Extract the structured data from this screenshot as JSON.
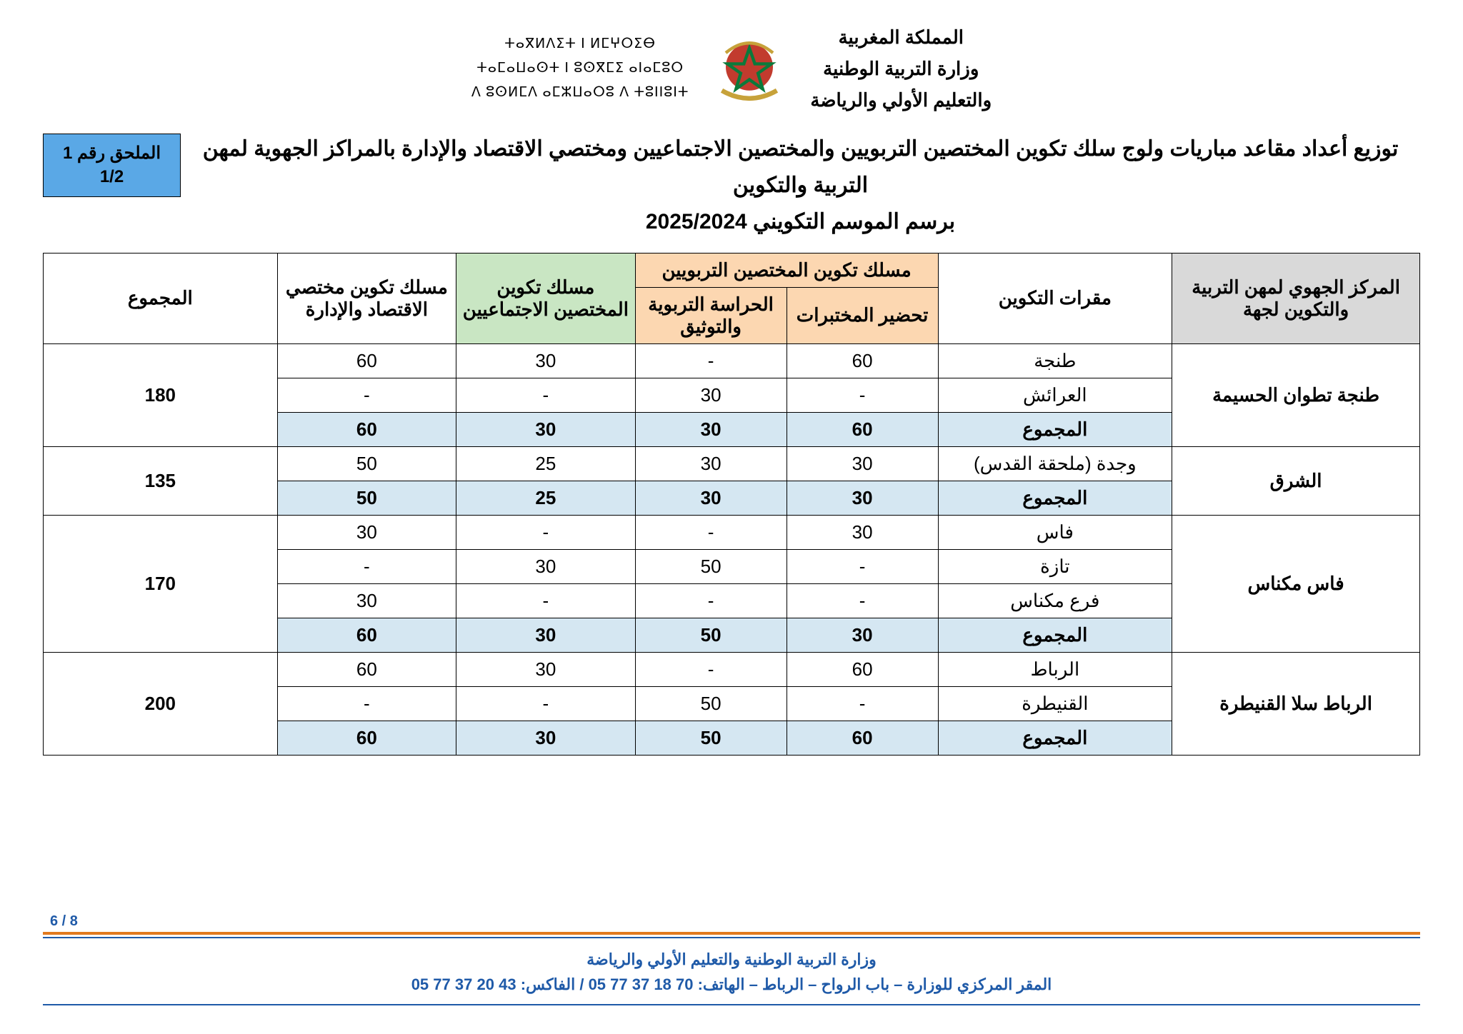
{
  "header": {
    "tifinagh_lines": [
      "ⵜⴰⴳⵍⴷⵉⵜ ⵏ ⵍⵎⵖⵔⵉⴱ",
      "ⵜⴰⵎⴰⵡⴰⵙⵜ ⵏ ⵓⵙⴳⵎⵉ ⴰⵏⴰⵎⵓⵔ",
      "ⴷ ⵓⵙⵍⵎⴷ ⴰⵎⵣⵡⴰⵔⵓ ⴷ ⵜⵓⵏⵏⵓⵏⵜ"
    ],
    "arabic_lines": [
      "المملكة المغربية",
      "وزارة التربية الوطنية",
      "والتعليم الأولي والرياضة"
    ]
  },
  "annex": {
    "line1": "الملحق رقم 1",
    "line2": "1/2"
  },
  "title": {
    "line1": "توزيع أعداد مقاعد مباريات ولوج سلك تكوين المختصين التربويين والمختصين الاجتماعيين ومختصي الاقتصاد والإدارة بالمراكز الجهوية لمهن التربية والتكوين",
    "line2": "برسم الموسم التكويني 2025/2024"
  },
  "table": {
    "columns": {
      "region": "المركز الجهوي لمهن التربية والتكوين لجهة",
      "site": "مقرات التكوين",
      "edu_group": "مسلك تكوين المختصين التربويين",
      "edu_lab": "تحضير المختبرات",
      "edu_doc": "الحراسة التربوية والتوثيق",
      "social": "مسلك تكوين المختصين الاجتماعيين",
      "econ": "مسلك تكوين مختصي الاقتصاد والإدارة",
      "total": "المجموع"
    },
    "col_widths_pct": [
      18,
      17,
      11,
      11,
      13,
      13,
      17
    ],
    "subtotal_label": "المجموع",
    "regions": [
      {
        "name": "طنجة تطوان الحسيمة",
        "total": "180",
        "sites": [
          {
            "name": "طنجة",
            "lab": "60",
            "doc": "-",
            "soc": "30",
            "econ": "60"
          },
          {
            "name": "العرائش",
            "lab": "-",
            "doc": "30",
            "soc": "-",
            "econ": "-"
          }
        ],
        "subtotal": {
          "lab": "60",
          "doc": "30",
          "soc": "30",
          "econ": "60"
        }
      },
      {
        "name": "الشرق",
        "total": "135",
        "sites": [
          {
            "name": "وجدة (ملحقة القدس)",
            "lab": "30",
            "doc": "30",
            "soc": "25",
            "econ": "50"
          }
        ],
        "subtotal": {
          "lab": "30",
          "doc": "30",
          "soc": "25",
          "econ": "50"
        }
      },
      {
        "name": "فاس مكناس",
        "total": "170",
        "sites": [
          {
            "name": "فاس",
            "lab": "30",
            "doc": "-",
            "soc": "-",
            "econ": "30"
          },
          {
            "name": "تازة",
            "lab": "-",
            "doc": "50",
            "soc": "30",
            "econ": "-"
          },
          {
            "name": "فرع مكناس",
            "lab": "-",
            "doc": "-",
            "soc": "-",
            "econ": "30"
          }
        ],
        "subtotal": {
          "lab": "30",
          "doc": "50",
          "soc": "30",
          "econ": "60"
        }
      },
      {
        "name": "الرباط سلا القنيطرة",
        "total": "200",
        "sites": [
          {
            "name": "الرباط",
            "lab": "60",
            "doc": "-",
            "soc": "30",
            "econ": "60"
          },
          {
            "name": "القنيطرة",
            "lab": "-",
            "doc": "50",
            "soc": "-",
            "econ": "-"
          }
        ],
        "subtotal": {
          "lab": "60",
          "doc": "50",
          "soc": "30",
          "econ": "60"
        }
      }
    ]
  },
  "footer": {
    "page": "6 / 8",
    "ministry_line1": "وزارة التربية الوطنية والتعليم الأولي والرياضة",
    "ministry_line2": "المقر المركزي للوزارة – باب الرواح – الرباط – الهاتف: 70 18 37 77 05 / الفاكس: 43 20 37 77 05"
  },
  "colors": {
    "hdr_region": "#d9d9d9",
    "hdr_edu": "#fcd7b1",
    "hdr_soc": "#c9e6c3",
    "subtotal_row": "#d5e7f2",
    "annex_badge": "#5aa8e6",
    "footer_orange": "#e17a1f",
    "footer_blue": "#1f5aa8"
  }
}
